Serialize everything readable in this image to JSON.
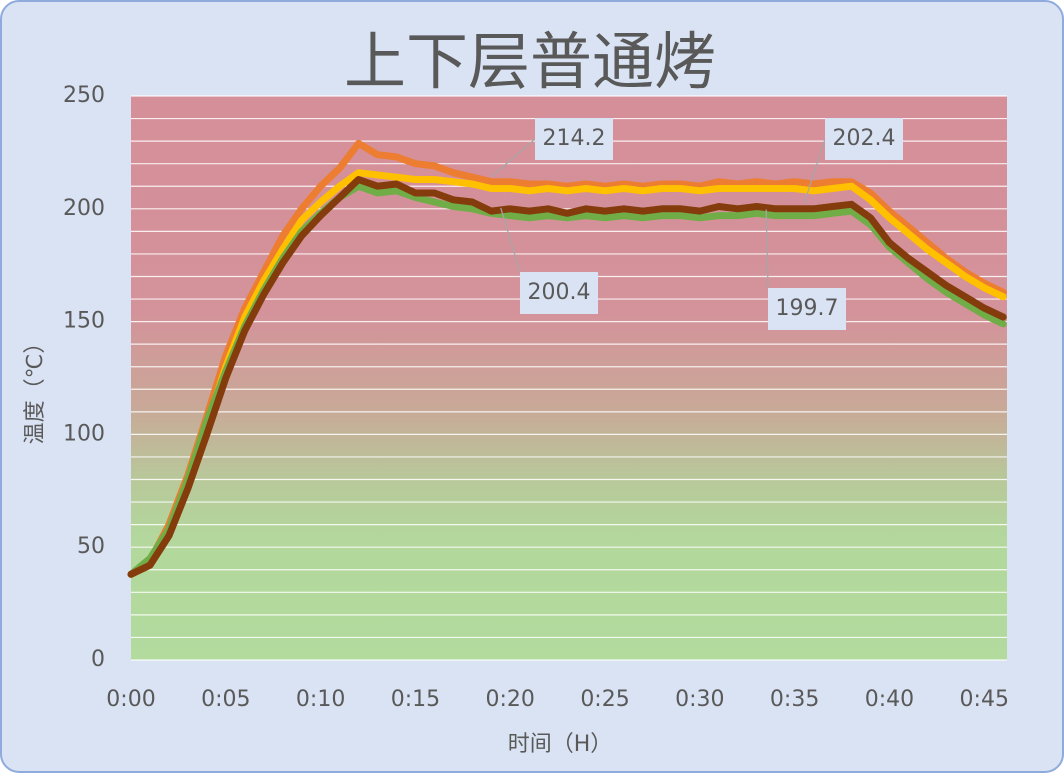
{
  "chart_data": {
    "type": "line",
    "title": "上下层普通烤",
    "x_label": "时间（H）",
    "y_label": "温度（℃）",
    "x": [
      0,
      1,
      2,
      3,
      4,
      5,
      6,
      7,
      8,
      9,
      10,
      11,
      12,
      13,
      14,
      15,
      16,
      17,
      18,
      19,
      20,
      21,
      22,
      23,
      24,
      25,
      26,
      27,
      28,
      29,
      30,
      31,
      32,
      33,
      34,
      35,
      36,
      37,
      38,
      39,
      40,
      41,
      42,
      43,
      44,
      45,
      46
    ],
    "series": [
      {
        "color": "#ed7d31",
        "values": [
          38,
          44,
          60,
          82,
          108,
          135,
          156,
          172,
          188,
          200,
          210,
          218,
          229,
          224,
          223,
          220,
          219,
          216,
          214,
          212,
          212,
          211,
          211,
          210,
          211,
          210,
          211,
          210,
          211,
          211,
          210,
          212,
          211,
          212,
          211,
          212,
          211,
          212,
          212,
          207,
          199,
          192,
          185,
          178,
          172,
          167,
          163
        ]
      },
      {
        "color": "#ffc000",
        "values": [
          38,
          43,
          58,
          79,
          104,
          130,
          152,
          168,
          182,
          195,
          203,
          210,
          216,
          215,
          214,
          213,
          213,
          212,
          211,
          209,
          209,
          208,
          209,
          208,
          209,
          208,
          209,
          208,
          209,
          209,
          208,
          209,
          209,
          209,
          209,
          209,
          208,
          209,
          210,
          204,
          196,
          189,
          182,
          176,
          170,
          165,
          161
        ]
      },
      {
        "color": "#70ad47",
        "values": [
          38,
          45,
          58,
          80,
          106,
          128,
          148,
          164,
          178,
          190,
          198,
          205,
          210,
          207,
          208,
          205,
          203,
          201,
          200,
          198,
          197,
          196,
          197,
          196,
          197,
          196,
          197,
          196,
          197,
          197,
          196,
          197,
          197,
          198,
          197,
          197,
          197,
          198,
          199,
          193,
          183,
          176,
          169,
          163,
          158,
          153,
          149
        ]
      },
      {
        "color": "#843c0c",
        "values": [
          38,
          42,
          55,
          76,
          100,
          125,
          146,
          162,
          176,
          188,
          197,
          205,
          213,
          210,
          211,
          207,
          207,
          204,
          203,
          199,
          200,
          199,
          200,
          198,
          200,
          199,
          200,
          199,
          200,
          200,
          199,
          201,
          200,
          201,
          200,
          200,
          200,
          201,
          202,
          196,
          185,
          178,
          172,
          166,
          161,
          156,
          152
        ]
      }
    ],
    "annotations": [
      {
        "text": "214.2",
        "x": 19,
        "y": 214.2
      },
      {
        "text": "202.4",
        "x": 35.5,
        "y": 202.4
      },
      {
        "text": "200.4",
        "x": 19.5,
        "y": 200.4
      },
      {
        "text": "199.7",
        "x": 33.5,
        "y": 199.7
      }
    ],
    "xlim": [
      0,
      46.2
    ],
    "xticks": [
      {
        "value": 0,
        "label": "0:00"
      },
      {
        "value": 5,
        "label": "0:05"
      },
      {
        "value": 10,
        "label": "0:10"
      },
      {
        "value": 15,
        "label": "0:15"
      },
      {
        "value": 20,
        "label": "0:20"
      },
      {
        "value": 25,
        "label": "0:25"
      },
      {
        "value": 30,
        "label": "0:30"
      },
      {
        "value": 35,
        "label": "0:35"
      },
      {
        "value": 40,
        "label": "0:40"
      },
      {
        "value": 45,
        "label": "0:45"
      }
    ],
    "ylim": [
      0,
      250
    ],
    "yticks": [
      0,
      50,
      100,
      150,
      200,
      250
    ],
    "minor_yticks": [
      10,
      20,
      30,
      40,
      60,
      70,
      80,
      90,
      110,
      120,
      130,
      140,
      160,
      170,
      180,
      190,
      210,
      220,
      230,
      240
    ],
    "grid": true
  }
}
